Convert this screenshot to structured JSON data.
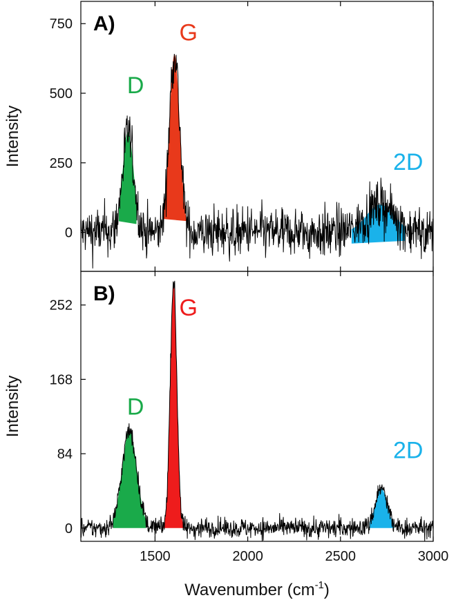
{
  "chart_data": [
    {
      "type": "line",
      "panel_label": "A)",
      "xlabel": "Wavenumber (cm",
      "xlabel_superscript": "-1",
      "xlabel_suffix": ")",
      "ylabel": "Intensity",
      "xlim": [
        1100,
        3000
      ],
      "ylim": [
        -140,
        830
      ],
      "x_ticks": [
        1500,
        2000,
        2500,
        3000
      ],
      "y_ticks": [
        0,
        250,
        500,
        750
      ],
      "y_tick_labels": [
        "0",
        "250",
        "500",
        "750"
      ],
      "grid": false,
      "baseline_noise": 55,
      "peaks": [
        {
          "label": "D",
          "center": 1355,
          "height": 360,
          "width": 30,
          "color": "#1aaa4a",
          "fill_from": 1305,
          "fill_to": 1400,
          "base_left": 40,
          "base_right": 30,
          "label_x": 1395,
          "label_y": 500
        },
        {
          "label": "G",
          "center": 1605,
          "height": 640,
          "width": 28,
          "color": "#e8391b",
          "fill_from": 1515,
          "fill_to": 1680,
          "base_left": 50,
          "base_right": 40,
          "label_x": 1680,
          "label_y": 690
        },
        {
          "label": "2D",
          "center": 2715,
          "height": 100,
          "width": 75,
          "color": "#1ab2ea",
          "fill_from": 2560,
          "fill_to": 2850,
          "base_left": -40,
          "base_right": -30,
          "label_x": 2865,
          "label_y": 225
        }
      ]
    },
    {
      "type": "line",
      "panel_label": "B)",
      "xlabel": "Wavenumber (cm",
      "xlabel_superscript": "-1",
      "xlabel_suffix": ")",
      "ylabel": "Intensity",
      "xlim": [
        1100,
        3000
      ],
      "ylim": [
        -15,
        290
      ],
      "x_ticks": [
        1500,
        2000,
        2500,
        3000
      ],
      "x_tick_labels": [
        "1500",
        "2000",
        "2500",
        "3000"
      ],
      "y_ticks": [
        0,
        84,
        168,
        252
      ],
      "y_tick_labels": [
        "0",
        "84",
        "168",
        "252"
      ],
      "grid": false,
      "baseline_noise": 7,
      "peaks": [
        {
          "label": "D",
          "center": 1362,
          "height": 110,
          "width": 40,
          "color": "#1aaa4a",
          "fill_from": 1275,
          "fill_to": 1450,
          "base_left": 0,
          "base_right": 0,
          "label_x": 1395,
          "label_y": 128
        },
        {
          "label": "G",
          "center": 1600,
          "height": 278,
          "width": 18,
          "color": "#ee1c1c",
          "fill_from": 1535,
          "fill_to": 1665,
          "base_left": 0,
          "base_right": 0,
          "label_x": 1680,
          "label_y": 240
        },
        {
          "label": "2D",
          "center": 2720,
          "height": 45,
          "width": 32,
          "color": "#1ab2ea",
          "fill_from": 2655,
          "fill_to": 2790,
          "base_left": 0,
          "base_right": 0,
          "label_x": 2865,
          "label_y": 79
        }
      ]
    }
  ]
}
